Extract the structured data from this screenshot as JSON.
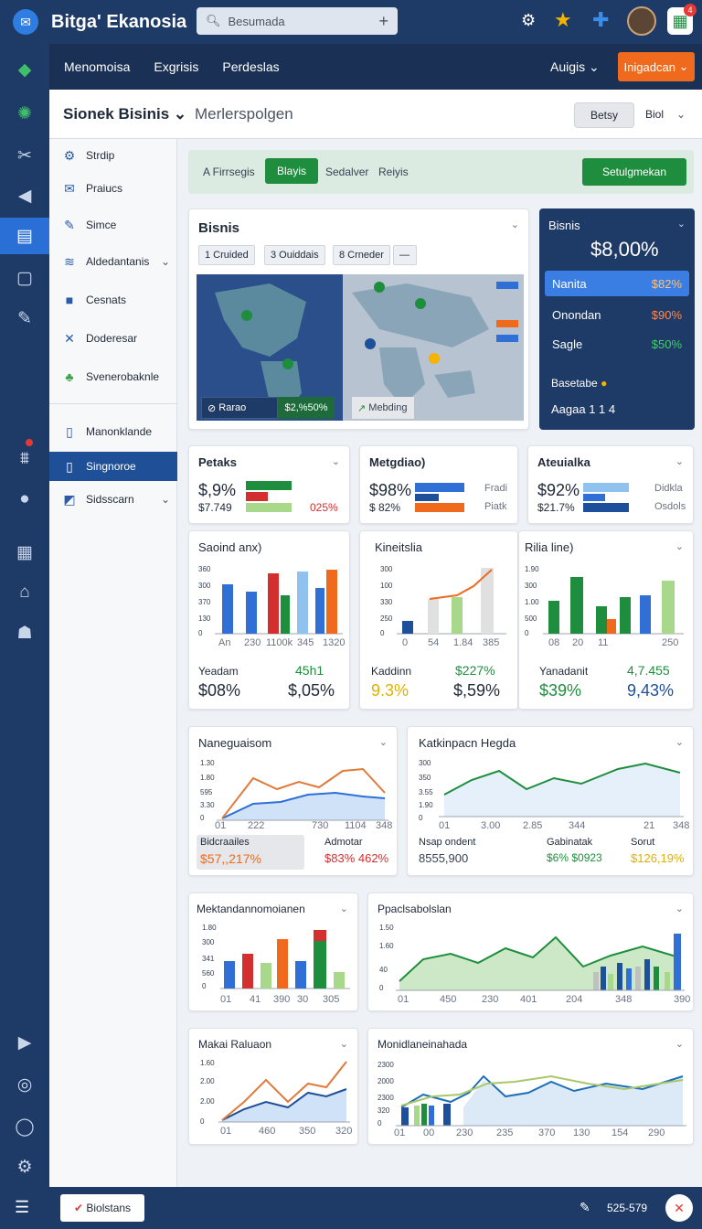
{
  "header": {
    "title": "Bitga' Ekanosia",
    "search_placeholder": "Besumada",
    "icons": [
      "gear-icon",
      "star-icon",
      "puzzle-icon",
      "avatar",
      "spreadsheet-icon"
    ],
    "badge": "4"
  },
  "nav": {
    "items": [
      "Menomoisa",
      "Exgrisis",
      "Perdeslas"
    ],
    "user": "Auigis",
    "button": "Inigadcan"
  },
  "subheader": {
    "title": "Sionek Bisinis",
    "subtitle": "Merlerspolgen",
    "pill": "Betsy",
    "right_label": "Biol"
  },
  "sidebar": {
    "items": [
      {
        "label": "Strdip",
        "icon": "gear-icon"
      },
      {
        "label": "Praiucs",
        "icon": "inbox-icon"
      },
      {
        "label": "Simce",
        "icon": "pen-icon"
      },
      {
        "label": "Aldedantanis",
        "icon": "wifi-icon"
      },
      {
        "label": "Cesnats",
        "icon": "cube-icon"
      },
      {
        "label": "Doderesar",
        "icon": "close-icon"
      },
      {
        "label": "Svenerobaknle",
        "icon": "gift-icon"
      },
      {
        "label": "Manonklande",
        "icon": "doc-icon"
      },
      {
        "label": "Singnoroe",
        "icon": "page-icon"
      },
      {
        "label": "Sidsscarn",
        "icon": "bookmark-icon"
      }
    ]
  },
  "tabs": {
    "first": "A Firrsegis",
    "active": "Blayis",
    "items": [
      "Sedalver",
      "Reiyis"
    ],
    "action": "Setulgmekan"
  },
  "map_card": {
    "title": "Bisnis",
    "segments": [
      "1 Cruided",
      "3 Ouiddais",
      "8 Crneder"
    ],
    "footer_left": "Rarao",
    "footer_value": "$2,%50%",
    "footer_right": "Mebding"
  },
  "blue_card": {
    "title": "Bisnis",
    "value": "$8,00%",
    "rows": [
      {
        "label": "Nanita",
        "value": "$82%"
      },
      {
        "label": "Onondan",
        "value": "$90%"
      },
      {
        "label": "Sagle",
        "value": "$50%"
      }
    ],
    "foot1": "Basetabe",
    "foot2": "Aagaa 1 1 4"
  },
  "kpi_cards": [
    {
      "title": "Petaks",
      "v1": "$,9%",
      "v2": "$7.749",
      "v3": "025%"
    },
    {
      "title": "Metgdiao)",
      "v1": "$98%",
      "v2": "$ 82%",
      "l1": "Fradi",
      "l2": "Piatk"
    },
    {
      "title": "Ateuialka",
      "v1": "$92%",
      "v2": "$21.7%",
      "l1": "Didkla",
      "l2": "Osdols"
    }
  ],
  "bar_cards": [
    {
      "title": "Saoind anx)",
      "ylabels": [
        "360",
        "300",
        "370",
        "130",
        "0"
      ],
      "xlabels": [
        "An",
        "230",
        "1100k",
        "345",
        "1320"
      ],
      "f1": "Yeadam",
      "f2": "45h1",
      "f3": "$08%",
      "f4": "$,05%"
    },
    {
      "title": "Kineitslia",
      "ylabels": [
        "300",
        "100",
        "330",
        "250",
        "0"
      ],
      "xlabels": [
        "0",
        "54",
        "1.84",
        "385"
      ],
      "f1": "Kaddinn",
      "f2": "$227%",
      "f3": "9.3%",
      "f4": "$,59%"
    },
    {
      "title": "Rilia line)",
      "ylabels": [
        "1.90",
        "300",
        "1.00",
        "500",
        "0"
      ],
      "xlabels": [
        "08",
        "20",
        "11",
        "250"
      ],
      "f1": "Yanadanit",
      "f2": "4,7.455",
      "f3": "$39%",
      "f4": "9,43%"
    }
  ],
  "line_cards": [
    {
      "title": "Naneguaisom",
      "ylabels": [
        "1.30",
        "1.80",
        "595",
        "3.30",
        "0"
      ],
      "xlabels": [
        "01",
        "222",
        "730",
        "1104",
        "348"
      ],
      "l1": "Bidcraailes",
      "v1": "$57,,217%",
      "l2": "Admotar",
      "v2": "$83% 462%"
    },
    {
      "title": "Katkinpacn Hegda",
      "ylabels": [
        "300",
        "350",
        "3.55",
        "1.90",
        "0"
      ],
      "xlabels": [
        "01",
        "3.00",
        "2.85",
        "344",
        "21",
        "348"
      ],
      "l1": "Nsap ondent",
      "v1": "8555,900",
      "l2": "Gabinatak",
      "v2": "$6% $0923",
      "l3": "Sorut",
      "v3": "$126,19%"
    }
  ],
  "lower_cards": [
    {
      "title": "Mektandannomoianen",
      "ylabels": [
        "1.80",
        "300",
        "341",
        "560",
        "0"
      ],
      "xlabels": [
        "01",
        "41",
        "390",
        "30",
        "305"
      ]
    },
    {
      "title": "Ppaclsabolslan",
      "ylabels": [
        "1.50",
        "1.60",
        "40",
        "0"
      ],
      "xlabels": [
        "01",
        "450",
        "230",
        "401",
        "204",
        "348",
        "390"
      ]
    },
    {
      "title": "Makai Raluaon",
      "ylabels": [
        "1.60",
        "2.00",
        "2.00",
        "0"
      ],
      "xlabels": [
        "01",
        "460",
        "350",
        "320"
      ]
    },
    {
      "title": "Monidlaneinahada",
      "ylabels": [
        "2300",
        "2000",
        "2300",
        "320",
        "0"
      ],
      "xlabels": [
        "01",
        "00",
        "230",
        "235",
        "370",
        "130",
        "154",
        "290"
      ]
    }
  ],
  "footer": {
    "button": "Biolstans",
    "text": "525-579"
  },
  "colors": {
    "navy": "#1e3a66",
    "blue": "#2f6fd6",
    "green": "#1e8e3e",
    "orange": "#f06a1d",
    "red": "#d32f2f",
    "lightgreen": "#a8d88a"
  }
}
